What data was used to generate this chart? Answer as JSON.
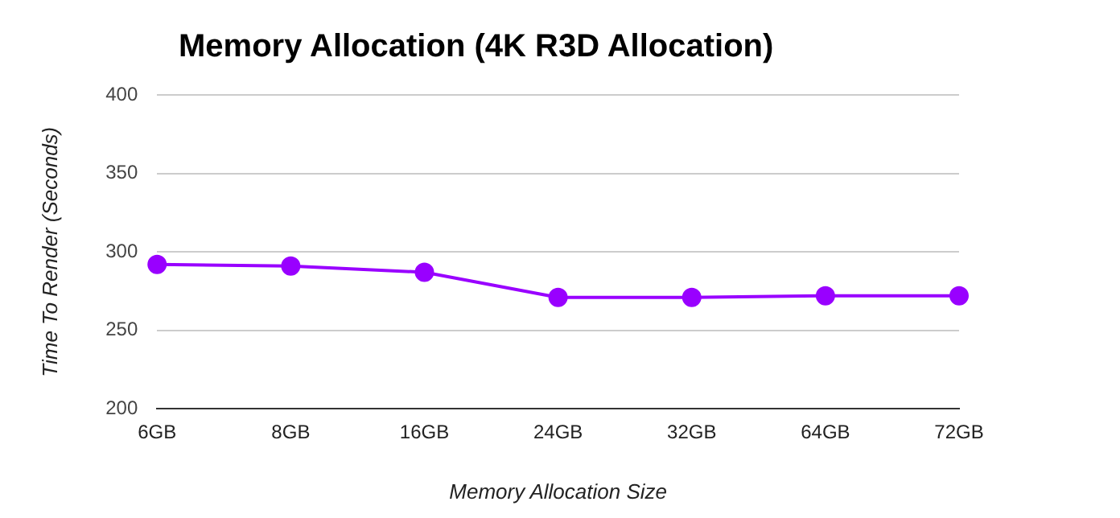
{
  "chart_data": {
    "type": "line",
    "title": "Memory Allocation (4K R3D Allocation)",
    "xlabel": "Memory Allocation Size",
    "ylabel": "Time To Render (Seconds)",
    "categories": [
      "6GB",
      "8GB",
      "16GB",
      "24GB",
      "32GB",
      "64GB",
      "72GB"
    ],
    "series": [
      {
        "color": "#9900ff",
        "values": [
          292,
          291,
          287,
          271,
          271,
          272,
          272
        ]
      }
    ],
    "ylim": [
      200,
      400
    ],
    "yticks": [
      200,
      250,
      300,
      350,
      400
    ],
    "grid": "y",
    "legend": false,
    "marker": "circle",
    "line_style": "solid"
  }
}
